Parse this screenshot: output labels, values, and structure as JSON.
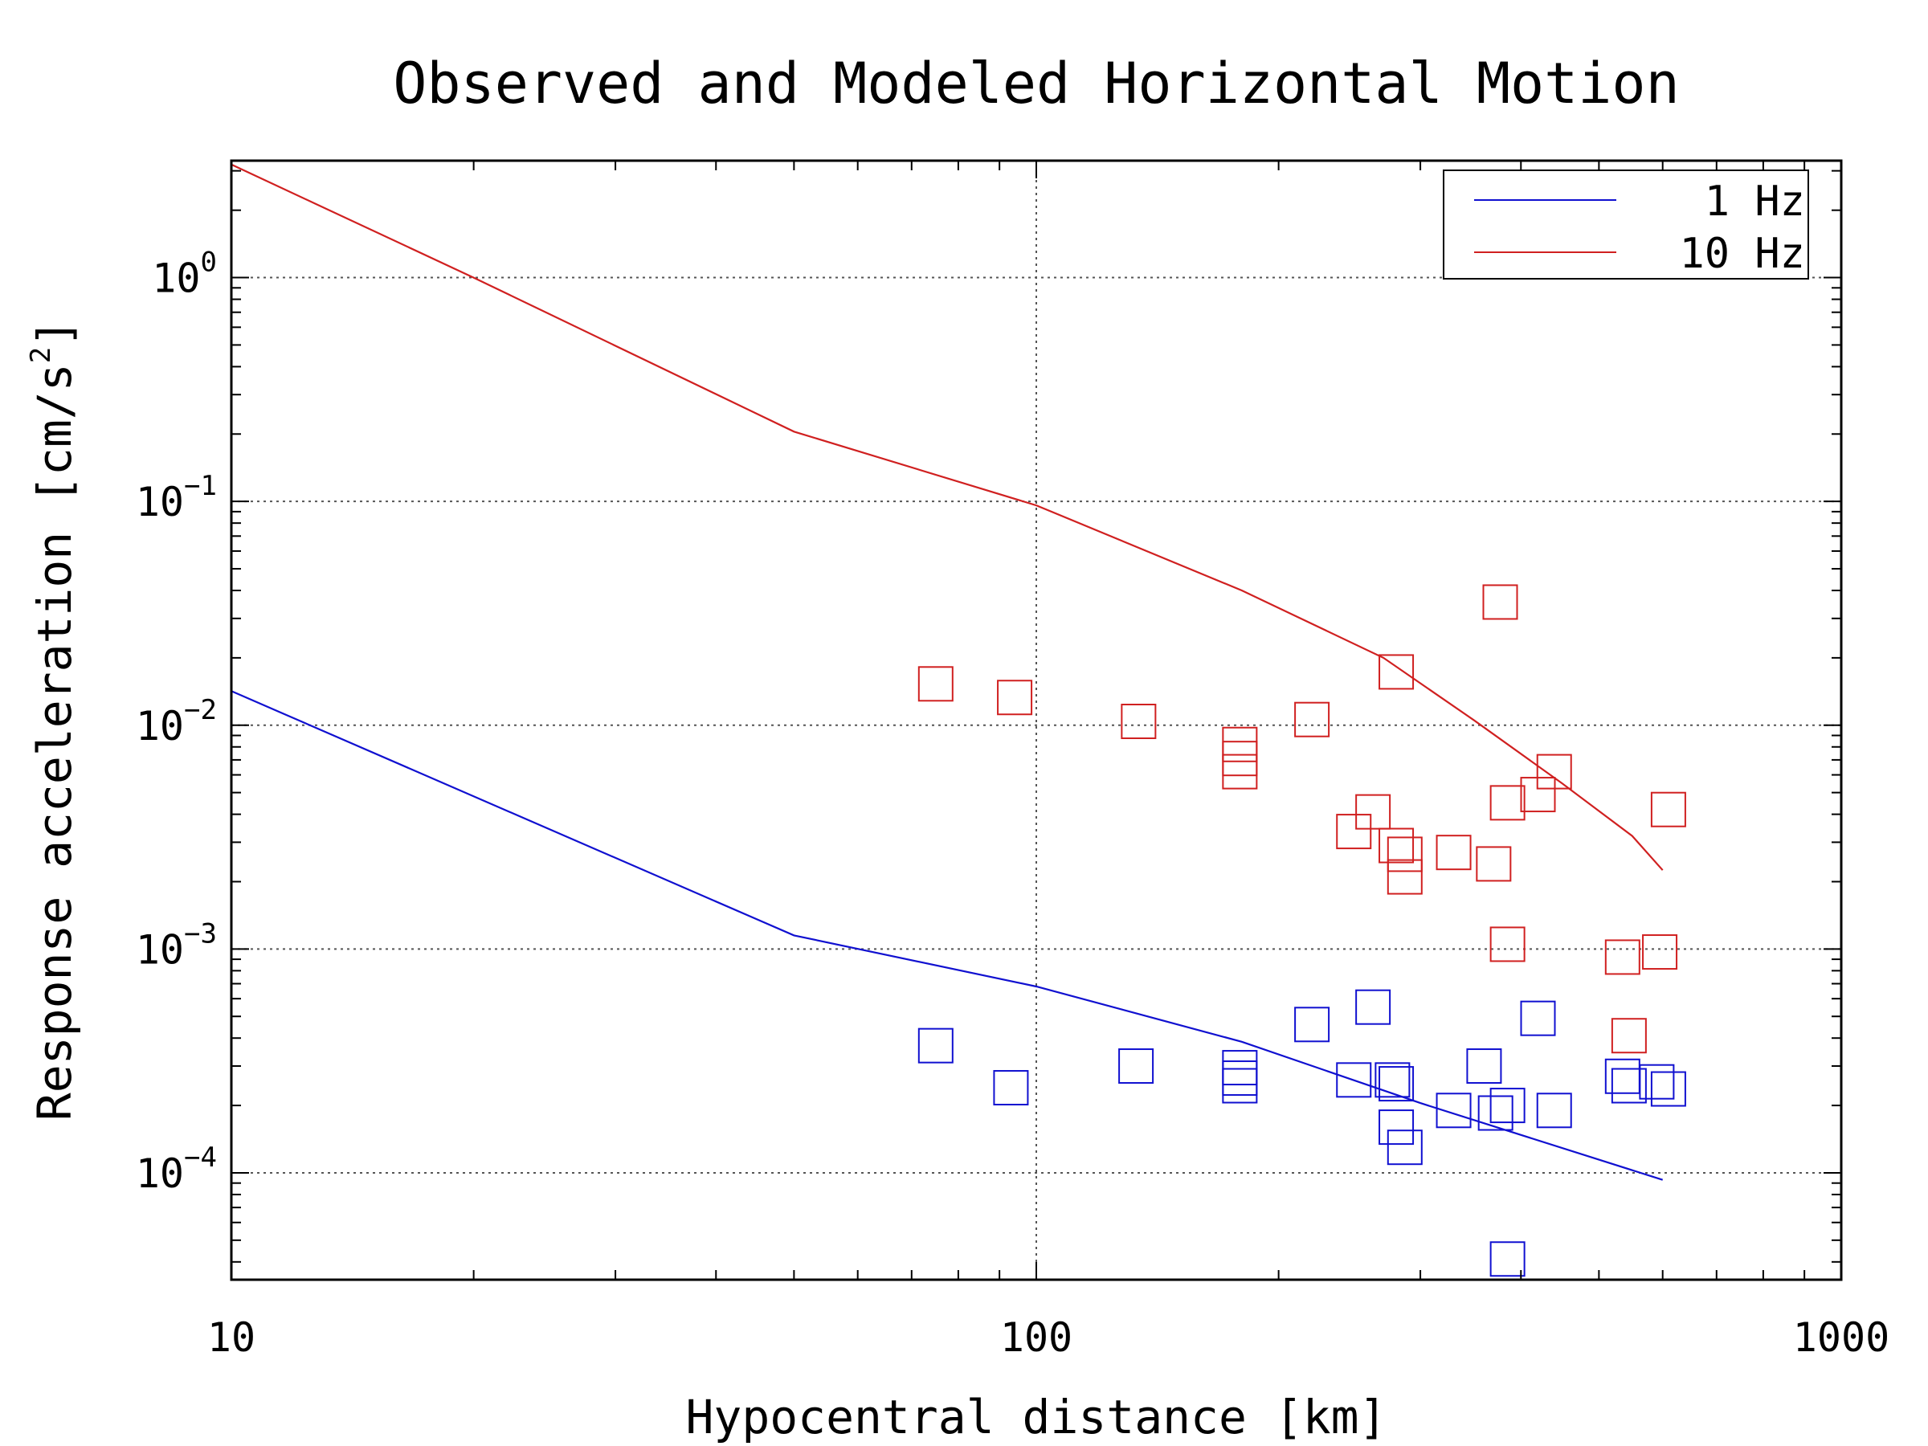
{
  "chart_data": {
    "type": "scatter",
    "title": "Observed and Modeled Horizontal Motion",
    "xlabel": "Hypocentral distance [km]",
    "ylabel_main": "Response acceleration [cm/s",
    "ylabel_sup": "2",
    "ylabel_end": "]",
    "x_scale": "log",
    "y_scale": "log",
    "xlim": [
      10,
      1000
    ],
    "ylim": [
      3.33e-05,
      3.33
    ],
    "x_ticks": [
      {
        "value": 10,
        "label": "10"
      },
      {
        "value": 100,
        "label": "100"
      },
      {
        "value": 1000,
        "label": "1000"
      }
    ],
    "y_ticks": [
      {
        "value": 1,
        "base": "10",
        "exp": "0"
      },
      {
        "value": 0.1,
        "base": "10",
        "exp": "−1"
      },
      {
        "value": 0.01,
        "base": "10",
        "exp": "−2"
      },
      {
        "value": 0.001,
        "base": "10",
        "exp": "−3"
      },
      {
        "value": 0.0001,
        "base": "10",
        "exp": "−4"
      }
    ],
    "grid": "dotted at major ticks",
    "legend_position": "top-right",
    "series": [
      {
        "name": "1 Hz",
        "color": "#1010d0",
        "model": [
          [
            10,
            0.0142
          ],
          [
            50,
            0.00115
          ],
          [
            100,
            0.00068
          ],
          [
            180,
            0.000385
          ],
          [
            300,
            0.000205
          ],
          [
            600,
            9.3e-05
          ]
        ],
        "observed": [
          [
            75,
            0.00037
          ],
          [
            93,
            0.00024
          ],
          [
            133,
            0.0003
          ],
          [
            179,
            0.000295
          ],
          [
            179,
            0.000265
          ],
          [
            179,
            0.000245
          ],
          [
            220,
            0.00046
          ],
          [
            248,
            0.00026
          ],
          [
            262,
            0.00055
          ],
          [
            277,
            0.00026
          ],
          [
            280,
            0.00025
          ],
          [
            280,
            0.00016
          ],
          [
            287,
            0.00013
          ],
          [
            330,
            0.00019
          ],
          [
            360,
            0.0003
          ],
          [
            372,
            0.000185
          ],
          [
            385,
            0.0002
          ],
          [
            385,
            4.12e-05
          ],
          [
            420,
            0.00049
          ],
          [
            440,
            0.00019
          ],
          [
            535,
            0.00027
          ],
          [
            545,
            0.000245
          ],
          [
            590,
            0.000255
          ],
          [
            610,
            0.000237
          ]
        ]
      },
      {
        "name": "10 Hz",
        "color": "#d02020",
        "model": [
          [
            10,
            3.2
          ],
          [
            20,
            1.0
          ],
          [
            50,
            0.205
          ],
          [
            100,
            0.096
          ],
          [
            180,
            0.04
          ],
          [
            270,
            0.02
          ],
          [
            350,
            0.0105
          ],
          [
            450,
            0.0055
          ],
          [
            550,
            0.0032
          ],
          [
            600,
            0.00225
          ]
        ],
        "observed": [
          [
            75,
            0.0153
          ],
          [
            94,
            0.0133
          ],
          [
            134,
            0.0104
          ],
          [
            179,
            0.0082
          ],
          [
            179,
            0.0071
          ],
          [
            179,
            0.0062
          ],
          [
            220,
            0.0106
          ],
          [
            248,
            0.00335
          ],
          [
            262,
            0.0041
          ],
          [
            280,
            0.0173
          ],
          [
            280,
            0.0029
          ],
          [
            287,
            0.00265
          ],
          [
            287,
            0.0021
          ],
          [
            330,
            0.0027
          ],
          [
            370,
            0.0024
          ],
          [
            377,
            0.0355
          ],
          [
            385,
            0.0045
          ],
          [
            385,
            0.00105
          ],
          [
            420,
            0.0049
          ],
          [
            440,
            0.0062
          ],
          [
            535,
            0.00092
          ],
          [
            545,
            0.00041
          ],
          [
            595,
            0.00097
          ],
          [
            610,
            0.0042
          ]
        ]
      }
    ]
  }
}
